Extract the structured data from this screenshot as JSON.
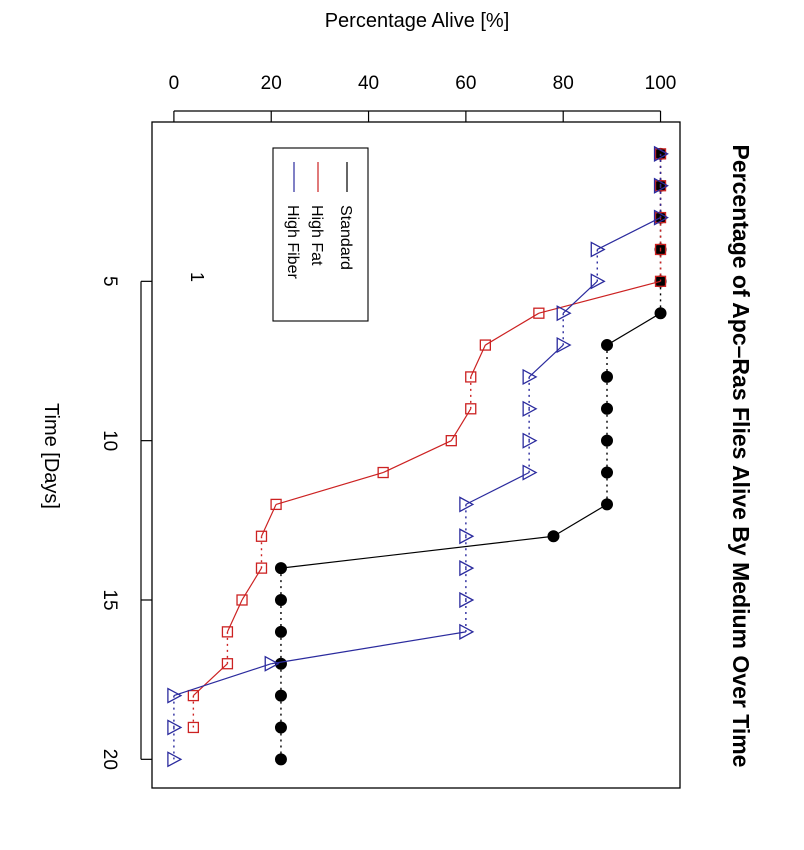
{
  "chart_data": {
    "type": "line",
    "title": "Percentage of Apc–Ras Flies Alive By Medium Over Time",
    "xlabel": "Time [Days]",
    "ylabel": "Percentage Alive [%]",
    "xlim": [
      0,
      20.9
    ],
    "ylim": [
      -4.5,
      104
    ],
    "x_ticks": [
      5,
      10,
      15,
      20
    ],
    "y_ticks": [
      0,
      20,
      40,
      60,
      80,
      100
    ],
    "annotation": "1",
    "legend": {
      "placement": "top-left",
      "entries": [
        "Standard",
        "High Fat",
        "High Fiber"
      ]
    },
    "series": [
      {
        "name": "Standard",
        "color": "#000000",
        "marker": "filled-circle",
        "x": [
          1,
          2,
          3,
          4,
          5,
          6,
          7,
          8,
          9,
          10,
          11,
          12,
          13,
          14,
          15,
          16,
          17,
          18,
          19,
          20
        ],
        "values": [
          100,
          100,
          100,
          100,
          100,
          100,
          89,
          89,
          89,
          89,
          89,
          89,
          78,
          22,
          22,
          22,
          22,
          22,
          22,
          22
        ]
      },
      {
        "name": "High Fat",
        "color": "#cc2222",
        "marker": "open-square",
        "x": [
          1,
          2,
          3,
          4,
          5,
          6,
          7,
          8,
          9,
          10,
          11,
          12,
          13,
          14,
          15,
          16,
          17,
          18,
          19
        ],
        "values": [
          100,
          100,
          100,
          100,
          100,
          75,
          64,
          61,
          61,
          57,
          43,
          21,
          18,
          18,
          14,
          11,
          11,
          4,
          4
        ]
      },
      {
        "name": "High Fiber",
        "color": "#2b2b9e",
        "marker": "open-triangle",
        "x": [
          1,
          2,
          3,
          4,
          5,
          6,
          7,
          8,
          9,
          10,
          11,
          12,
          13,
          14,
          15,
          16,
          17,
          18,
          19,
          20
        ],
        "values": [
          100,
          100,
          100,
          87,
          87,
          80,
          80,
          73,
          73,
          73,
          73,
          60,
          60,
          60,
          60,
          60,
          20,
          0,
          0,
          0
        ]
      }
    ]
  }
}
